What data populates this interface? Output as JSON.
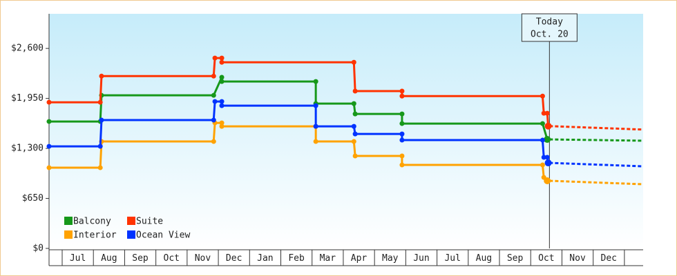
{
  "chart_data": {
    "type": "step-line",
    "ylim": [
      0,
      3050
    ],
    "yticks": [
      {
        "value": 0,
        "label": "$0"
      },
      {
        "value": 650,
        "label": "$650"
      },
      {
        "value": 1300,
        "label": "$1,300"
      },
      {
        "value": 1950,
        "label": "$1,950"
      },
      {
        "value": 2600,
        "label": "$2,600"
      }
    ],
    "xlim": [
      -0.42,
      18.6
    ],
    "xticks": [
      {
        "value": 0.5,
        "label": "Jul"
      },
      {
        "value": 1.5,
        "label": "Aug"
      },
      {
        "value": 2.5,
        "label": "Sep"
      },
      {
        "value": 3.5,
        "label": "Oct"
      },
      {
        "value": 4.5,
        "label": "Nov"
      },
      {
        "value": 5.5,
        "label": "Dec"
      },
      {
        "value": 6.5,
        "label": "Jan"
      },
      {
        "value": 7.5,
        "label": "Feb"
      },
      {
        "value": 8.5,
        "label": "Mar"
      },
      {
        "value": 9.5,
        "label": "Apr"
      },
      {
        "value": 10.5,
        "label": "May"
      },
      {
        "value": 11.5,
        "label": "Jun"
      },
      {
        "value": 12.5,
        "label": "Jul"
      },
      {
        "value": 13.5,
        "label": "Aug"
      },
      {
        "value": 14.5,
        "label": "Sep"
      },
      {
        "value": 15.5,
        "label": "Oct"
      },
      {
        "value": 16.5,
        "label": "Nov"
      },
      {
        "value": 17.5,
        "label": "Dec"
      }
    ],
    "annotation": {
      "x": 15.6,
      "lines": [
        "Today",
        "Oct. 20"
      ]
    },
    "legend": "bottom-left",
    "series": [
      {
        "name": "Balcony",
        "color": "#16981a",
        "x": [
          -0.42,
          1.22,
          1.26,
          4.85,
          5.11,
          5.11,
          8.12,
          8.12,
          9.34,
          9.38,
          10.88,
          10.88,
          15.38,
          15.53
        ],
        "values": [
          1650,
          1650,
          1990,
          1990,
          2225,
          2170,
          2170,
          1883,
          1883,
          1748,
          1748,
          1623,
          1623,
          1417
        ],
        "forecast": {
          "x": [
            15.6,
            18.6
          ],
          "values": [
            1417,
            1400
          ]
        }
      },
      {
        "name": "Suite",
        "color": "#ff3300",
        "x": [
          -0.42,
          1.22,
          1.26,
          4.85,
          4.89,
          5.11,
          5.11,
          9.34,
          9.38,
          10.88,
          10.88,
          15.38,
          15.42,
          15.53,
          15.56
        ],
        "values": [
          1900,
          1900,
          2240,
          2240,
          2475,
          2475,
          2420,
          2420,
          2045,
          2045,
          1980,
          1980,
          1757,
          1757,
          1590
        ],
        "forecast": {
          "x": [
            15.6,
            18.6
          ],
          "values": [
            1590,
            1545
          ]
        }
      },
      {
        "name": "Interior",
        "color": "#ffa200",
        "x": [
          -0.42,
          1.22,
          1.26,
          4.85,
          4.89,
          5.11,
          5.11,
          8.12,
          8.12,
          9.34,
          9.38,
          10.88,
          10.88,
          15.38,
          15.42,
          15.53
        ],
        "values": [
          1049,
          1049,
          1390,
          1390,
          1632,
          1632,
          1587,
          1587,
          1390,
          1390,
          1202,
          1202,
          1085,
          1085,
          923,
          879
        ],
        "forecast": {
          "x": [
            15.6,
            18.6
          ],
          "values": [
            879,
            834
          ]
        }
      },
      {
        "name": "Ocean View",
        "color": "#0033ff",
        "x": [
          -0.42,
          1.22,
          1.26,
          4.85,
          4.89,
          5.11,
          5.11,
          8.12,
          8.12,
          9.34,
          9.38,
          10.88,
          10.88,
          15.38,
          15.42,
          15.53,
          15.56
        ],
        "values": [
          1327,
          1327,
          1668,
          1668,
          1910,
          1910,
          1856,
          1856,
          1587,
          1587,
          1488,
          1488,
          1408,
          1408,
          1184,
          1184,
          1112
        ],
        "forecast": {
          "x": [
            15.6,
            18.6
          ],
          "values": [
            1112,
            1067
          ]
        }
      }
    ]
  }
}
